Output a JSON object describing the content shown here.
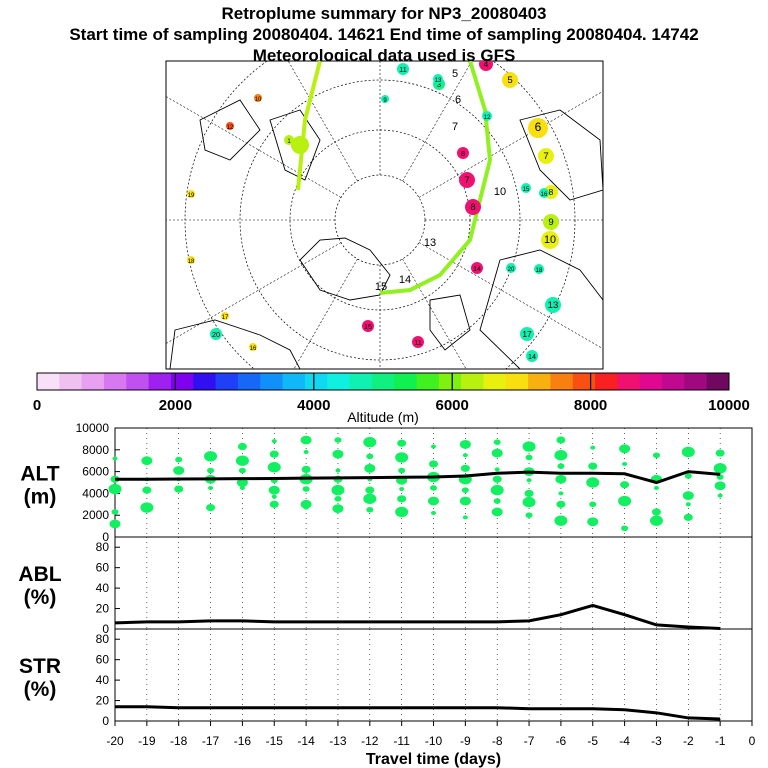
{
  "header": {
    "title": "Retroplume summary for NP3_20080403",
    "sampling_line": "Start time of sampling 20080404. 14621     End time of sampling 20080404. 14742",
    "met_line": "Meteorological data used is GFS"
  },
  "colorbar": {
    "label": "Altitude (m)",
    "ticks": [
      "0",
      "2000",
      "4000",
      "6000",
      "8000",
      "10000"
    ],
    "colors": [
      "#f8e0f8",
      "#f0c0f0",
      "#e8a0f0",
      "#d878f0",
      "#c050f0",
      "#a020f0",
      "#8000f0",
      "#3010f0",
      "#2040f8",
      "#1868f8",
      "#1090f8",
      "#10b8f8",
      "#10d8f0",
      "#10f0e0",
      "#10f0b0",
      "#10f080",
      "#10f050",
      "#40f020",
      "#80f010",
      "#b8f010",
      "#e8f010",
      "#f8e010",
      "#f8b010",
      "#f88010",
      "#f85010",
      "#f82020",
      "#f01070",
      "#e00890",
      "#c00890",
      "#a00880",
      "#700860"
    ]
  },
  "map": {
    "labels": [
      "1",
      "2",
      "3",
      "4",
      "5",
      "6",
      "7",
      "8",
      "9",
      "10",
      "11",
      "12",
      "13",
      "14",
      "15",
      "16",
      "17",
      "18",
      "19",
      "20"
    ]
  },
  "chart_data": [
    {
      "type": "line",
      "name": "ALT",
      "ylabel": "ALT\n(m)",
      "ylim": [
        0,
        10000
      ],
      "yticks": [
        0,
        2000,
        4000,
        6000,
        8000,
        10000
      ],
      "x": [
        -20,
        -19,
        -18,
        -17,
        -16,
        -15,
        -14,
        -13,
        -12,
        -11,
        -10,
        -9,
        -8,
        -7,
        -6,
        -5,
        -4,
        -3,
        -2,
        -1
      ],
      "values": [
        5300,
        5300,
        5320,
        5330,
        5350,
        5370,
        5400,
        5420,
        5450,
        5480,
        5500,
        5600,
        5850,
        5950,
        5850,
        5850,
        5800,
        5000,
        6000,
        5750
      ],
      "scatter_color": "#10f060",
      "scatter": [
        {
          "x": -20,
          "y": [
            7200,
            5300,
            4400,
            2300,
            1200
          ]
        },
        {
          "x": -19,
          "y": [
            7000,
            5300,
            4300,
            2700
          ]
        },
        {
          "x": -18,
          "y": [
            7100,
            6100,
            5300,
            4400
          ]
        },
        {
          "x": -17,
          "y": [
            7400,
            6100,
            5300,
            4500,
            2700
          ]
        },
        {
          "x": -16,
          "y": [
            8300,
            7000,
            6100,
            5000,
            4500
          ]
        },
        {
          "x": -15,
          "y": [
            8800,
            7600,
            6400,
            5200,
            4300,
            3700,
            3000
          ]
        },
        {
          "x": -14,
          "y": [
            8900,
            7800,
            6200,
            5300,
            4400,
            3000,
            2700
          ]
        },
        {
          "x": -13,
          "y": [
            8900,
            7600,
            6100,
            5300,
            4300,
            3500,
            2600
          ]
        },
        {
          "x": -12,
          "y": [
            8700,
            7400,
            6300,
            5300,
            4300,
            3500,
            2500
          ]
        },
        {
          "x": -11,
          "y": [
            8600,
            7300,
            6100,
            5200,
            4400,
            3500,
            2300
          ]
        },
        {
          "x": -10,
          "y": [
            8300,
            6700,
            5500,
            4500,
            3300,
            2200
          ]
        },
        {
          "x": -9,
          "y": [
            8500,
            7500,
            6300,
            5300,
            4300,
            3300,
            1800
          ]
        },
        {
          "x": -8,
          "y": [
            8700,
            7700,
            6200,
            5300,
            4300,
            3300,
            2300
          ]
        },
        {
          "x": -7,
          "y": [
            8300,
            7300,
            6000,
            5200,
            4000,
            3200,
            2000
          ]
        },
        {
          "x": -6,
          "y": [
            8900,
            7500,
            6500,
            5300,
            4000,
            3000,
            1500
          ]
        },
        {
          "x": -5,
          "y": [
            8200,
            6500,
            5000,
            3000,
            1400
          ]
        },
        {
          "x": -4,
          "y": [
            8100,
            6700,
            4800,
            3300,
            800
          ]
        },
        {
          "x": -3,
          "y": [
            7500,
            5300,
            4500,
            2300,
            1500
          ]
        },
        {
          "x": -2,
          "y": [
            7800,
            5600,
            3800,
            3000,
            1800
          ]
        },
        {
          "x": -1,
          "y": [
            7700,
            6300,
            5500,
            4700,
            3800
          ]
        }
      ]
    },
    {
      "type": "line",
      "name": "ABL",
      "ylabel": "ABL\n(%)",
      "ylim": [
        0,
        90
      ],
      "yticks": [
        0,
        20,
        40,
        60,
        80
      ],
      "x": [
        -20,
        -19,
        -18,
        -17,
        -16,
        -15,
        -14,
        -13,
        -12,
        -11,
        -10,
        -9,
        -8,
        -7,
        -6,
        -5,
        -4,
        -3,
        -2,
        -1
      ],
      "values": [
        6,
        7,
        7,
        8,
        8,
        7,
        7,
        7,
        7,
        7,
        7,
        7,
        7,
        8,
        14,
        23,
        14,
        4,
        2,
        0.5
      ]
    },
    {
      "type": "line",
      "name": "STR",
      "ylabel": "STR\n(%)",
      "ylim": [
        0,
        90
      ],
      "yticks": [
        0,
        20,
        40,
        60,
        80
      ],
      "x": [
        -20,
        -19,
        -18,
        -17,
        -16,
        -15,
        -14,
        -13,
        -12,
        -11,
        -10,
        -9,
        -8,
        -7,
        -6,
        -5,
        -4,
        -3,
        -2,
        -1
      ],
      "values": [
        14,
        14,
        13,
        13,
        13,
        13,
        13,
        13,
        13,
        13,
        13,
        13,
        13,
        12,
        12,
        12,
        11,
        8,
        3,
        2
      ]
    }
  ],
  "xaxis": {
    "label": "Travel time (days)",
    "ticks": [
      "-20",
      "-19",
      "-18",
      "-17",
      "-16",
      "-15",
      "-14",
      "-13",
      "-12",
      "-11",
      "-10",
      "-9",
      "-8",
      "-7",
      "-6",
      "-5",
      "-4",
      "-3",
      "-2",
      "-1",
      "0"
    ]
  }
}
